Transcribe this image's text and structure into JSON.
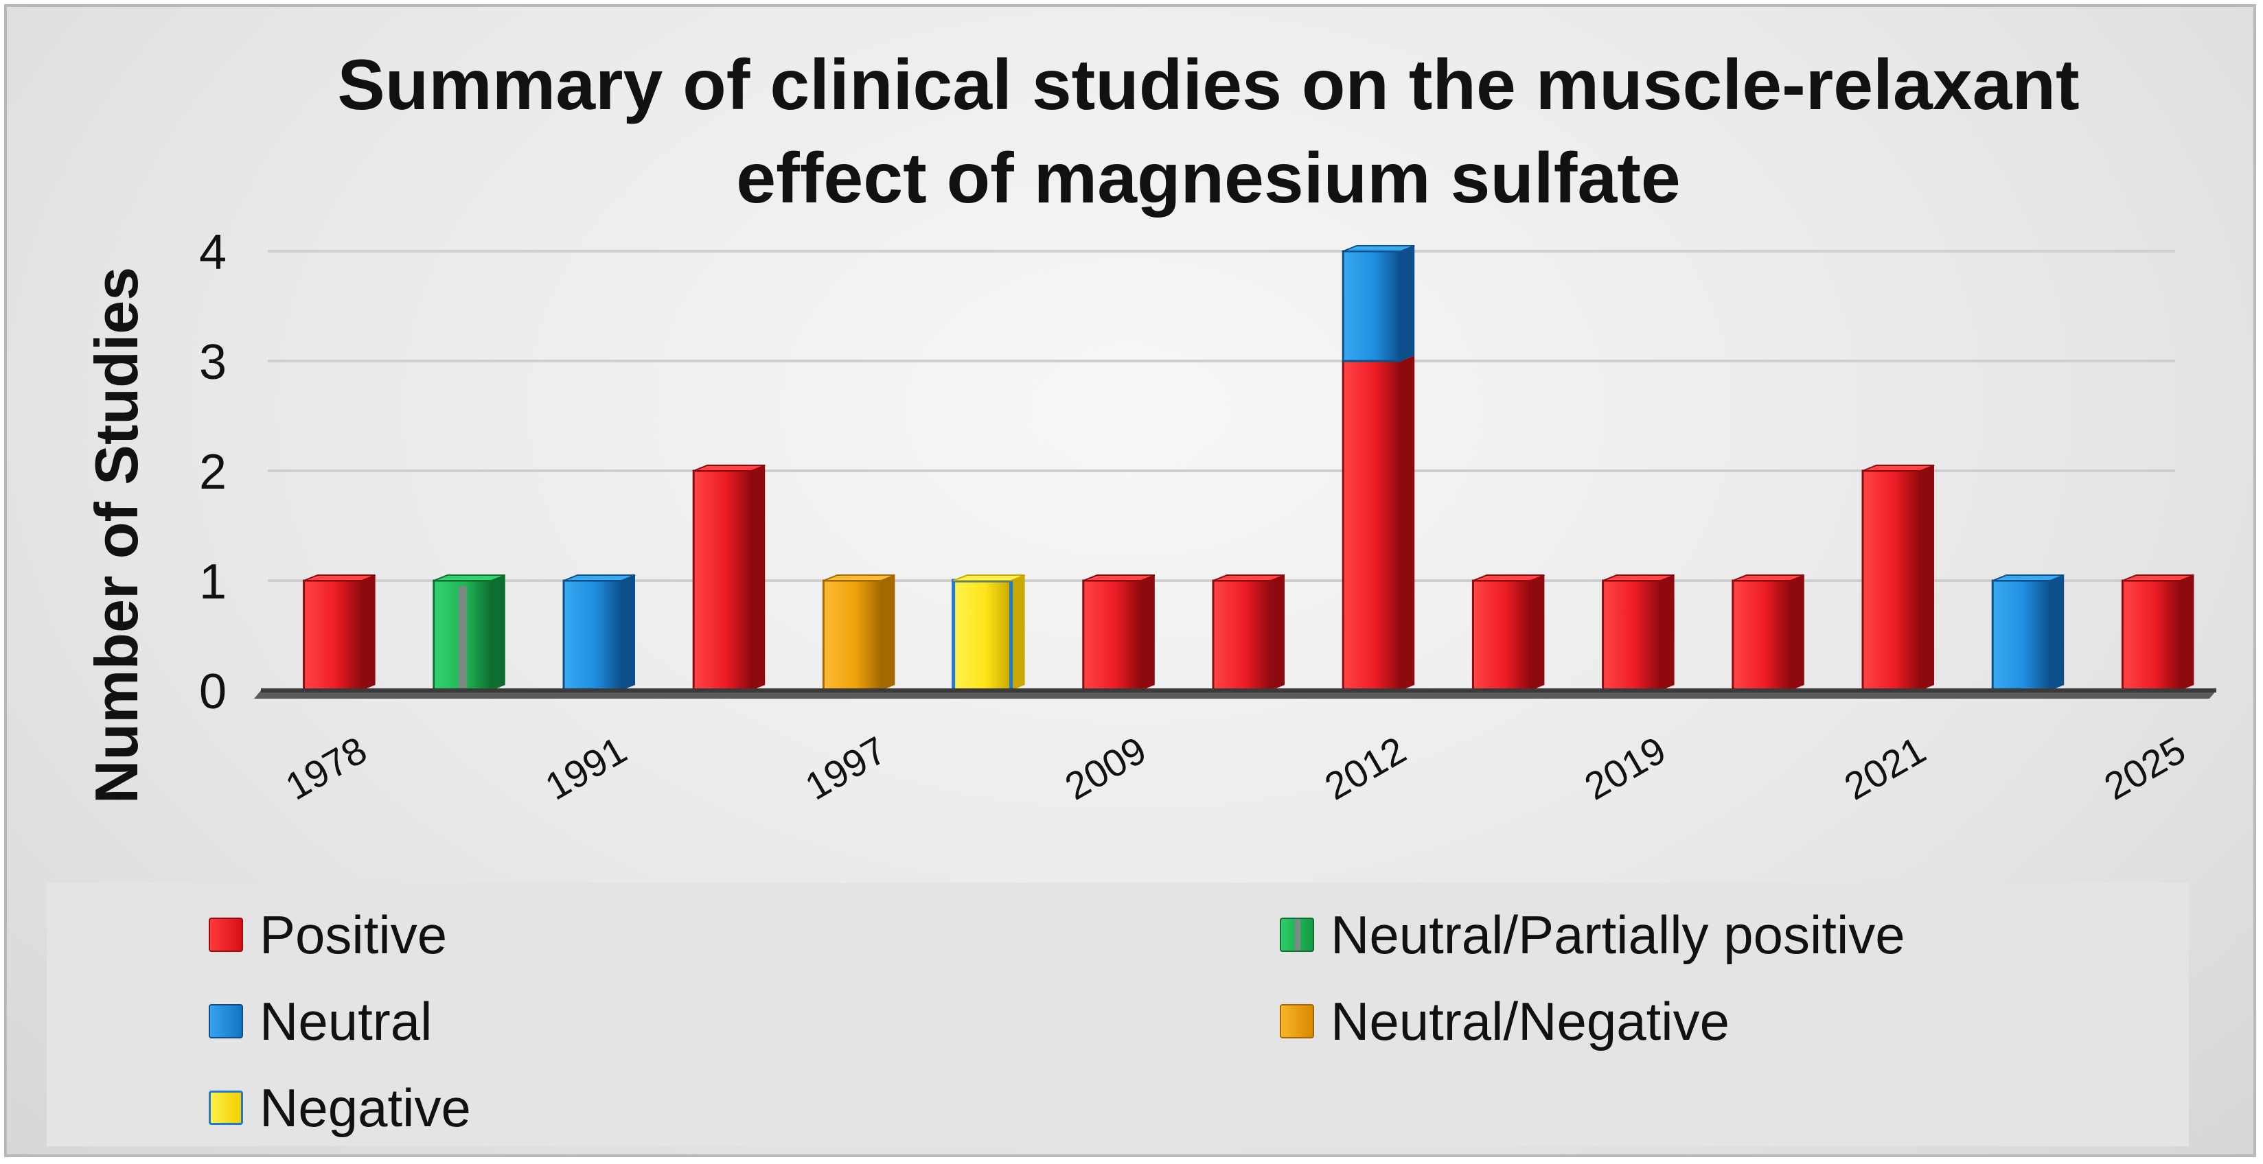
{
  "chart_data": {
    "type": "bar",
    "title": "Summary of clinical studies on the muscle-relaxant\neffect of magnesium sulfate",
    "xlabel": "",
    "ylabel": "Number of Studies",
    "ylim": [
      0,
      4
    ],
    "yticks": [
      0,
      1,
      2,
      3,
      4
    ],
    "x_tick_labels": [
      "1978",
      "1991",
      "1997",
      "2009",
      "2012",
      "2019",
      "2021",
      "2025"
    ],
    "legend": [
      {
        "key": "positive",
        "label": "Positive",
        "color": "#ee1c25"
      },
      {
        "key": "neutral_partial",
        "label": "Neutral/Partially positive",
        "color": "#1fb554"
      },
      {
        "key": "neutral",
        "label": "Neutral",
        "color": "#1f8ee0"
      },
      {
        "key": "neutral_negative",
        "label": "Neutral/Negative",
        "color": "#f0a30a"
      },
      {
        "key": "negative",
        "label": "Negative",
        "color": "#ffe51a"
      }
    ],
    "bars": [
      {
        "segments": [
          {
            "category": "positive",
            "value": 1
          }
        ]
      },
      {
        "segments": [
          {
            "category": "neutral_partial",
            "value": 1
          }
        ]
      },
      {
        "segments": [
          {
            "category": "neutral",
            "value": 1
          }
        ]
      },
      {
        "segments": [
          {
            "category": "positive",
            "value": 2
          }
        ]
      },
      {
        "segments": [
          {
            "category": "neutral_negative",
            "value": 1
          }
        ]
      },
      {
        "segments": [
          {
            "category": "negative",
            "value": 1
          }
        ]
      },
      {
        "segments": [
          {
            "category": "positive",
            "value": 1
          }
        ]
      },
      {
        "segments": [
          {
            "category": "positive",
            "value": 1
          }
        ]
      },
      {
        "segments": [
          {
            "category": "positive",
            "value": 3
          },
          {
            "category": "neutral",
            "value": 1
          }
        ]
      },
      {
        "segments": [
          {
            "category": "positive",
            "value": 1
          }
        ]
      },
      {
        "segments": [
          {
            "category": "positive",
            "value": 1
          }
        ]
      },
      {
        "segments": [
          {
            "category": "positive",
            "value": 1
          }
        ]
      },
      {
        "segments": [
          {
            "category": "positive",
            "value": 2
          }
        ]
      },
      {
        "segments": [
          {
            "category": "neutral",
            "value": 1
          }
        ]
      },
      {
        "segments": [
          {
            "category": "positive",
            "value": 1
          }
        ]
      }
    ]
  }
}
